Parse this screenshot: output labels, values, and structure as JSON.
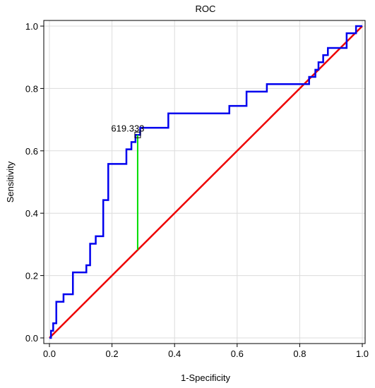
{
  "chart_data": {
    "type": "line",
    "title": "ROC",
    "xlabel": "1-Specificity",
    "ylabel": "Sensitivity",
    "xlim": [
      0,
      1
    ],
    "ylim": [
      0,
      1
    ],
    "xticks": [
      0.0,
      0.2,
      0.4,
      0.6,
      0.8,
      1.0
    ],
    "yticks": [
      0.0,
      0.2,
      0.4,
      0.6,
      0.8,
      1.0
    ],
    "xtick_labels": [
      "0.0",
      "0.2",
      "0.4",
      "0.6",
      "0.8",
      "1.0"
    ],
    "ytick_labels": [
      "0.0",
      "0.2",
      "0.4",
      "0.6",
      "0.8",
      "1.0"
    ],
    "grid": true,
    "series": [
      {
        "color": "#0000ee",
        "step": true,
        "x": [
          0.0,
          0.005,
          0.012,
          0.022,
          0.045,
          0.075,
          0.118,
          0.13,
          0.148,
          0.172,
          0.188,
          0.2,
          0.246,
          0.262,
          0.275,
          0.29,
          0.34,
          0.38,
          0.575,
          0.63,
          0.695,
          0.82,
          0.83,
          0.85,
          0.86,
          0.875,
          0.89,
          0.95,
          0.98,
          1.0
        ],
        "y": [
          0.0,
          0.023,
          0.047,
          0.116,
          0.14,
          0.21,
          0.233,
          0.302,
          0.326,
          0.442,
          0.558,
          0.558,
          0.605,
          0.628,
          0.651,
          0.674,
          0.674,
          0.72,
          0.744,
          0.79,
          0.814,
          0.814,
          0.837,
          0.86,
          0.884,
          0.907,
          0.93,
          0.977,
          1.0,
          1.0
        ]
      },
      {
        "color": "#ee0000",
        "x": [
          0.0,
          1.0
        ],
        "y": [
          0.0,
          1.0
        ]
      }
    ],
    "cutoff": {
      "label": "619.333",
      "x": 0.282,
      "y": 0.651,
      "diag_y": 0.282,
      "line_color": "#00dd00"
    }
  }
}
